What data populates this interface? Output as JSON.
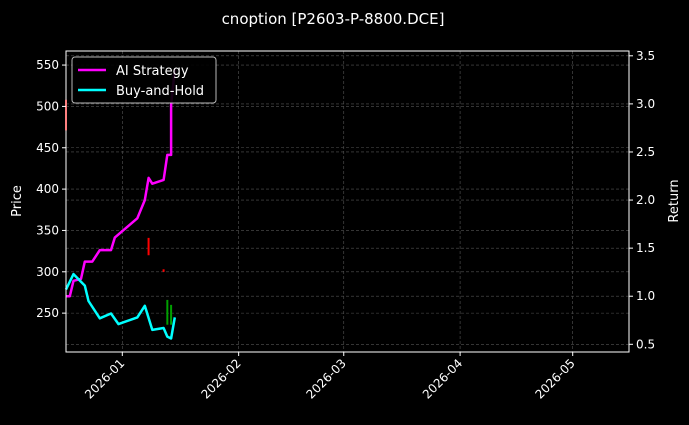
{
  "chart_data": {
    "type": "line",
    "title": "cnoption [P2603-P-8800.DCE]",
    "xlabel": "",
    "ylabel": "Price",
    "y2label": "Return",
    "xlim": [
      "2025-12-17",
      "2026-05-16"
    ],
    "ylim": [
      203,
      567
    ],
    "y2lim": [
      0.42,
      3.55
    ],
    "grid": true,
    "legend_position": "top-left",
    "x_ticks": [
      "2026-01",
      "2026-02",
      "2026-03",
      "2026-04",
      "2026-05"
    ],
    "y_ticks": [
      250,
      300,
      350,
      400,
      450,
      500,
      550
    ],
    "y2_ticks": [
      "0.5",
      "1.0",
      "1.5",
      "2.0",
      "2.5",
      "3.0",
      "3.5"
    ],
    "series": [
      {
        "name": "AI Strategy",
        "axis": "right",
        "color": "#ff00ff",
        "x": [
          "2025-12-17",
          "2025-12-18",
          "2025-12-19",
          "2025-12-21",
          "2025-12-22",
          "2025-12-24",
          "2025-12-26",
          "2025-12-29",
          "2025-12-30",
          "2026-01-05",
          "2026-01-07",
          "2026-01-08",
          "2026-01-09",
          "2026-01-12",
          "2026-01-13",
          "2026-01-14",
          "2026-01-14",
          "2026-01-15"
        ],
        "y": [
          1.0,
          1.0,
          1.16,
          1.18,
          1.36,
          1.36,
          1.48,
          1.48,
          1.61,
          1.81,
          2.0,
          2.23,
          2.17,
          2.21,
          2.47,
          2.47,
          2.99,
          3.36
        ]
      },
      {
        "name": "Buy-and-Hold",
        "axis": "right",
        "color": "#00ffff",
        "x": [
          "2025-12-17",
          "2025-12-19",
          "2025-12-22",
          "2025-12-23",
          "2025-12-26",
          "2025-12-29",
          "2025-12-31",
          "2026-01-05",
          "2026-01-07",
          "2026-01-09",
          "2026-01-12",
          "2026-01-13",
          "2026-01-14",
          "2026-01-15"
        ],
        "y": [
          1.07,
          1.23,
          1.11,
          0.95,
          0.77,
          0.82,
          0.71,
          0.78,
          0.9,
          0.65,
          0.67,
          0.58,
          0.56,
          0.78
        ]
      }
    ],
    "price_bars": [
      {
        "date": "2025-12-17",
        "low": 471,
        "high": 508,
        "color": "#ff0000"
      },
      {
        "date": "2026-01-08",
        "low": 320,
        "high": 341,
        "color": "#ff0000"
      },
      {
        "date": "2026-01-12",
        "low": 300,
        "high": 303,
        "color": "#ff0000"
      },
      {
        "date": "2026-01-13",
        "low": 236,
        "high": 266,
        "color": "#00a000"
      },
      {
        "date": "2026-01-14",
        "low": 236,
        "high": 260,
        "color": "#00a000"
      }
    ]
  }
}
